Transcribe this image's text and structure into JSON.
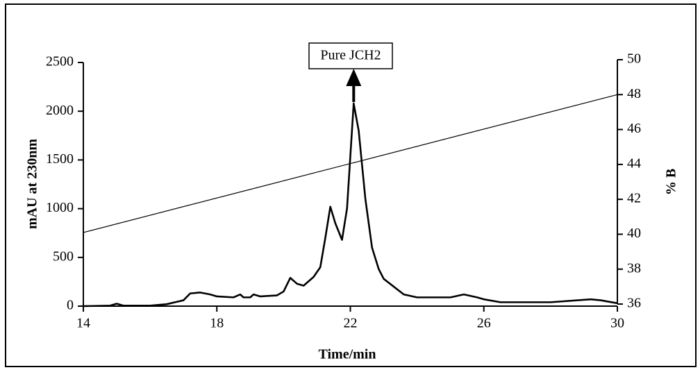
{
  "chart_data": {
    "type": "line",
    "xlabel": "Time/min",
    "ylabel": "mAU at 230nm",
    "y2label": "% B",
    "annotation": "Pure JCH2",
    "xlim": [
      14,
      30
    ],
    "xticks": [
      14,
      18,
      22,
      26,
      30
    ],
    "ylim": [
      0,
      2500
    ],
    "yticks": [
      0,
      500,
      1000,
      1500,
      2000,
      2500
    ],
    "y2lim": [
      36,
      50
    ],
    "y2ticks": [
      36,
      38,
      40,
      42,
      44,
      46,
      48,
      50
    ],
    "series": [
      {
        "name": "mAU",
        "color": "#000000",
        "axis": "y",
        "x": [
          14.0,
          14.8,
          15.0,
          15.2,
          16.0,
          16.5,
          17.0,
          17.2,
          17.5,
          17.8,
          18.0,
          18.5,
          18.7,
          18.8,
          19.0,
          19.1,
          19.3,
          19.8,
          20.0,
          20.2,
          20.4,
          20.6,
          20.9,
          21.1,
          21.25,
          21.4,
          21.55,
          21.75,
          21.9,
          22.1,
          22.25,
          22.45,
          22.65,
          22.85,
          23.0,
          23.3,
          23.6,
          24.0,
          25.0,
          25.4,
          25.8,
          26.0,
          26.5,
          28.0,
          29.2,
          29.5,
          30.0
        ],
        "values": [
          0,
          5,
          25,
          5,
          5,
          20,
          60,
          130,
          140,
          120,
          100,
          90,
          120,
          90,
          90,
          120,
          100,
          110,
          150,
          290,
          230,
          210,
          300,
          400,
          700,
          1020,
          850,
          680,
          1000,
          2080,
          1800,
          1100,
          600,
          380,
          280,
          200,
          120,
          90,
          90,
          120,
          90,
          70,
          40,
          40,
          70,
          60,
          30
        ]
      },
      {
        "name": "% B",
        "color": "#000000",
        "axis": "y2",
        "x": [
          14,
          30
        ],
        "values": [
          40.1,
          48
        ]
      }
    ]
  }
}
